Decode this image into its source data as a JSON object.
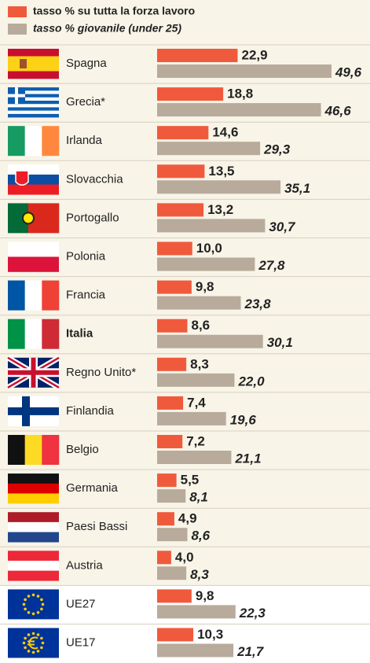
{
  "chart_data": {
    "type": "bar",
    "orientation": "horizontal",
    "categories": [
      "Spagna",
      "Grecia*",
      "Irlanda",
      "Slovacchia",
      "Portogallo",
      "Polonia",
      "Francia",
      "Italia",
      "Regno Unito*",
      "Finlandia",
      "Belgio",
      "Germania",
      "Paesi Bassi",
      "Austria",
      "UE27",
      "UE17"
    ],
    "series": [
      {
        "name": "tasso % su tutta la forza lavoro",
        "color": "#f05a3c",
        "values": [
          22.9,
          18.8,
          14.6,
          13.5,
          13.2,
          10.0,
          9.8,
          8.6,
          8.3,
          7.4,
          7.2,
          5.5,
          4.9,
          4.0,
          9.8,
          10.3
        ],
        "value_labels": [
          "22,9",
          "18,8",
          "14,6",
          "13,5",
          "13,2",
          "10,0",
          "9,8",
          "8,6",
          "8,3",
          "7,4",
          "7,2",
          "5,5",
          "4,9",
          "4,0",
          "9,8",
          "10,3"
        ]
      },
      {
        "name": "tasso % giovanile (under 25)",
        "color": "#b8ab9b",
        "values": [
          49.6,
          46.6,
          29.3,
          35.1,
          30.7,
          27.8,
          23.8,
          30.1,
          22.0,
          19.6,
          21.1,
          8.1,
          8.6,
          8.3,
          22.3,
          21.7
        ],
        "value_labels": [
          "49,6",
          "46,6",
          "29,3",
          "35,1",
          "30,7",
          "27,8",
          "23,8",
          "30,1",
          "22,0",
          "19,6",
          "21,1",
          "8,1",
          "8,6",
          "8,3",
          "22,3",
          "21,7"
        ]
      }
    ]
  }
}
